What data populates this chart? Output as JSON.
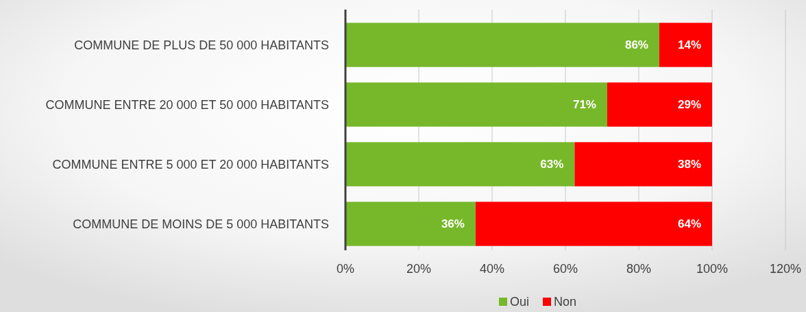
{
  "chart_data": {
    "type": "bar",
    "orientation": "horizontal",
    "stacked": true,
    "categories": [
      "COMMUNE DE PLUS DE 50 000 HABITANTS",
      "COMMUNE ENTRE 20 000 ET 50 000 HABITANTS",
      "COMMUNE ENTRE 5 000 ET 20 000 HABITANTS",
      "COMMUNE DE MOINS DE 5 000 HABITANTS"
    ],
    "series": [
      {
        "name": "Oui",
        "color": "#77b82a",
        "values": [
          85.6,
          71.4,
          62.5,
          35.5
        ],
        "value_labels": [
          "86%",
          "71%",
          "63%",
          "36%"
        ]
      },
      {
        "name": "Non",
        "color": "#ff0000",
        "values": [
          14.4,
          28.6,
          37.5,
          64.5
        ],
        "value_labels": [
          "14%",
          "29%",
          "38%",
          "64%"
        ]
      }
    ],
    "xlim": [
      0,
      120
    ],
    "xticks": [
      {
        "value": 0,
        "label": "0%"
      },
      {
        "value": 20,
        "label": "20%"
      },
      {
        "value": 40,
        "label": "40%"
      },
      {
        "value": 60,
        "label": "60%"
      },
      {
        "value": 80,
        "label": "80%"
      },
      {
        "value": 100,
        "label": "100%"
      },
      {
        "value": 120,
        "label": "120%"
      }
    ],
    "grid": "x",
    "legend": "bottom"
  }
}
